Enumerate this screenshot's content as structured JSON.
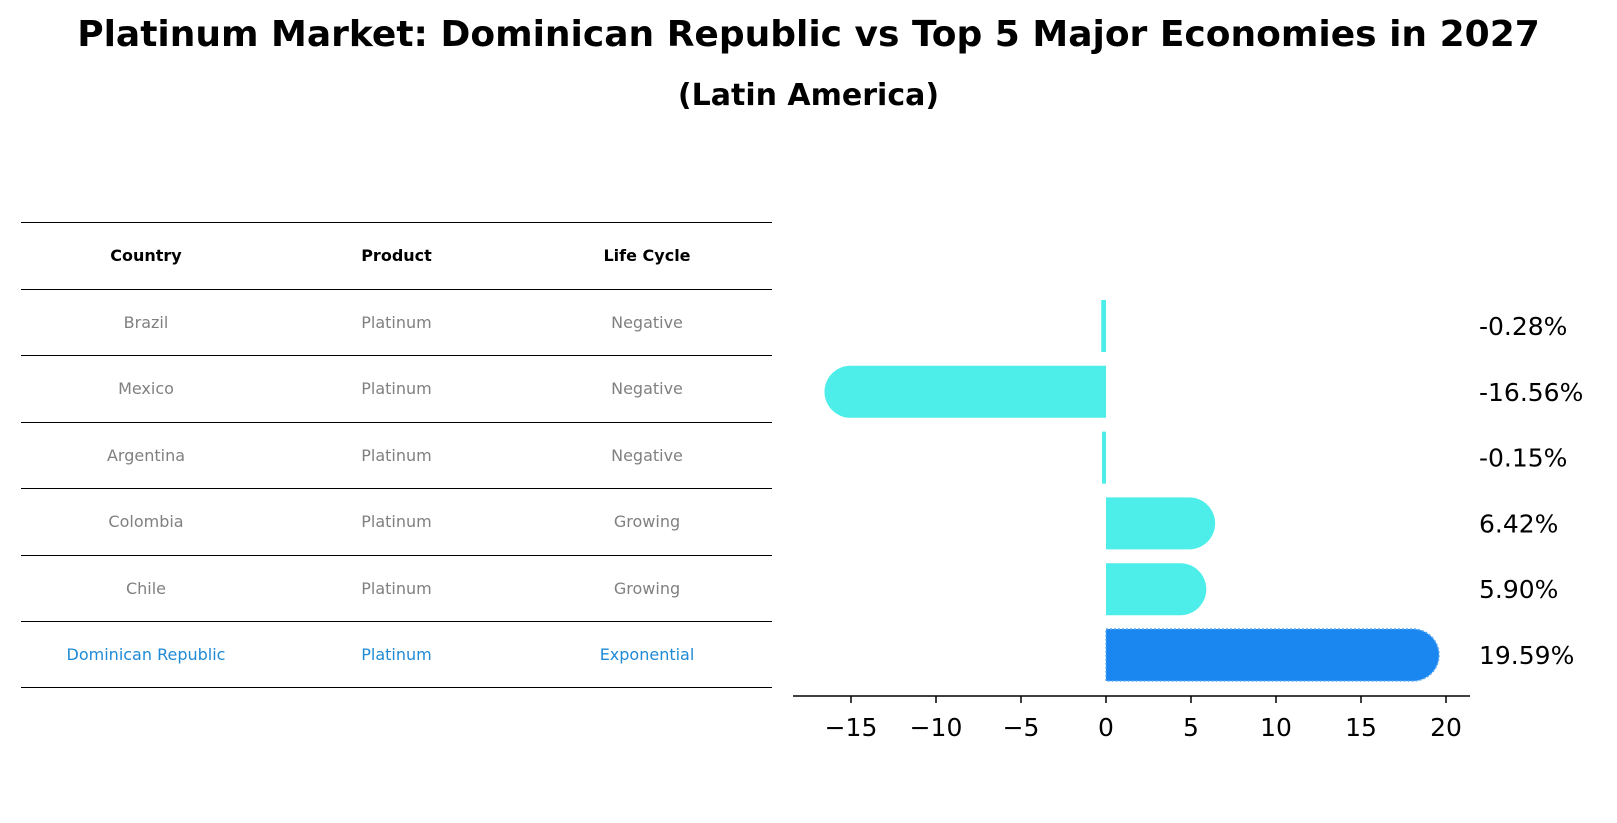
{
  "title": "Platinum Market: Dominican Republic vs Top 5 Major Economies in 2027",
  "subtitle": "(Latin America)",
  "table": {
    "headers": [
      "Country",
      "Product",
      "Life Cycle"
    ],
    "rows": [
      {
        "country": "Brazil",
        "product": "Platinum",
        "life_cycle": "Negative"
      },
      {
        "country": "Mexico",
        "product": "Platinum",
        "life_cycle": "Negative"
      },
      {
        "country": "Argentina",
        "product": "Platinum",
        "life_cycle": "Negative"
      },
      {
        "country": "Colombia",
        "product": "Platinum",
        "life_cycle": "Growing"
      },
      {
        "country": "Chile",
        "product": "Platinum",
        "life_cycle": "Growing"
      },
      {
        "country": "Dominican Republic",
        "product": "Platinum",
        "life_cycle": "Exponential"
      }
    ]
  },
  "colors": {
    "bar": "#4deeea",
    "highlight_bar": "#1a87f0",
    "highlight_text": "#1f8ad6",
    "muted_text": "#808080"
  },
  "chart_data": {
    "type": "bar",
    "orientation": "horizontal",
    "categories": [
      "Brazil",
      "Mexico",
      "Argentina",
      "Colombia",
      "Chile",
      "Dominican Republic"
    ],
    "values": [
      -0.28,
      -16.56,
      -0.15,
      6.42,
      5.9,
      19.59
    ],
    "value_labels": [
      "-0.28%",
      "-16.56%",
      "-0.15%",
      "6.42%",
      "5.90%",
      "19.59%"
    ],
    "highlight_index": 5,
    "xlim": [
      -18.1,
      21.4
    ],
    "xticks": [
      -15,
      -10,
      -5,
      0,
      5,
      10,
      15,
      20
    ],
    "xtick_labels": [
      "−15",
      "−10",
      "−5",
      "0",
      "5",
      "10",
      "15",
      "20"
    ],
    "grid": false,
    "xlabel": "",
    "ylabel": ""
  }
}
